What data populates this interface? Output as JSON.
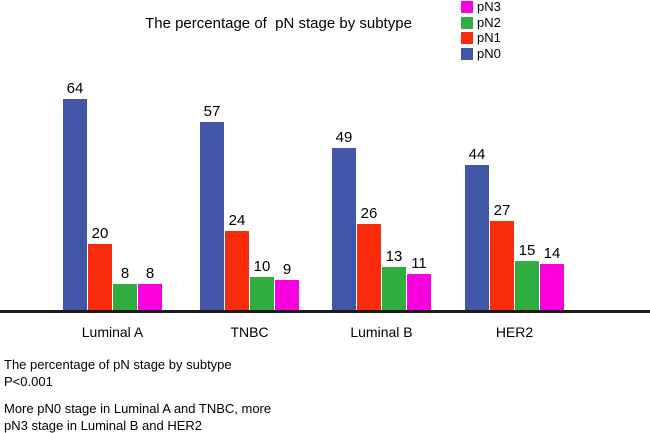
{
  "title": "The percentage of  pN stage by subtype",
  "legend": {
    "items": [
      {
        "label": "pN3",
        "color": "#fb00df"
      },
      {
        "label": "pN2",
        "color": "#2fad40"
      },
      {
        "label": "pN1",
        "color": "#fa2b0a"
      },
      {
        "label": "pN0",
        "color": "#4156a6"
      }
    ]
  },
  "chart_data": {
    "type": "bar",
    "title": "The percentage of  pN stage by subtype",
    "categories": [
      "Luminal A",
      "TNBC",
      "Luminal B",
      "HER2"
    ],
    "series": [
      {
        "name": "pN0",
        "color": "#4156a6",
        "values": [
          64,
          57,
          49,
          44
        ]
      },
      {
        "name": "pN1",
        "color": "#fa2b0a",
        "values": [
          20,
          24,
          26,
          27
        ]
      },
      {
        "name": "pN2",
        "color": "#2fad40",
        "values": [
          8,
          10,
          13,
          15
        ]
      },
      {
        "name": "pN3",
        "color": "#fb00df",
        "values": [
          8,
          9,
          11,
          14
        ]
      }
    ],
    "xlabel": "",
    "ylabel": "",
    "ylim": [
      0,
      70
    ],
    "grid": false,
    "legend_position": "top-right",
    "data_labels": true,
    "axis_line_color": "#1b1b1b"
  },
  "footer": {
    "line1": "The percentage of pN stage by subtype",
    "line2": "P<0.001",
    "line3": "More pN0 stage in Luminal A and TNBC, more",
    "line4": "pN3 stage in Luminal B and HER2"
  }
}
